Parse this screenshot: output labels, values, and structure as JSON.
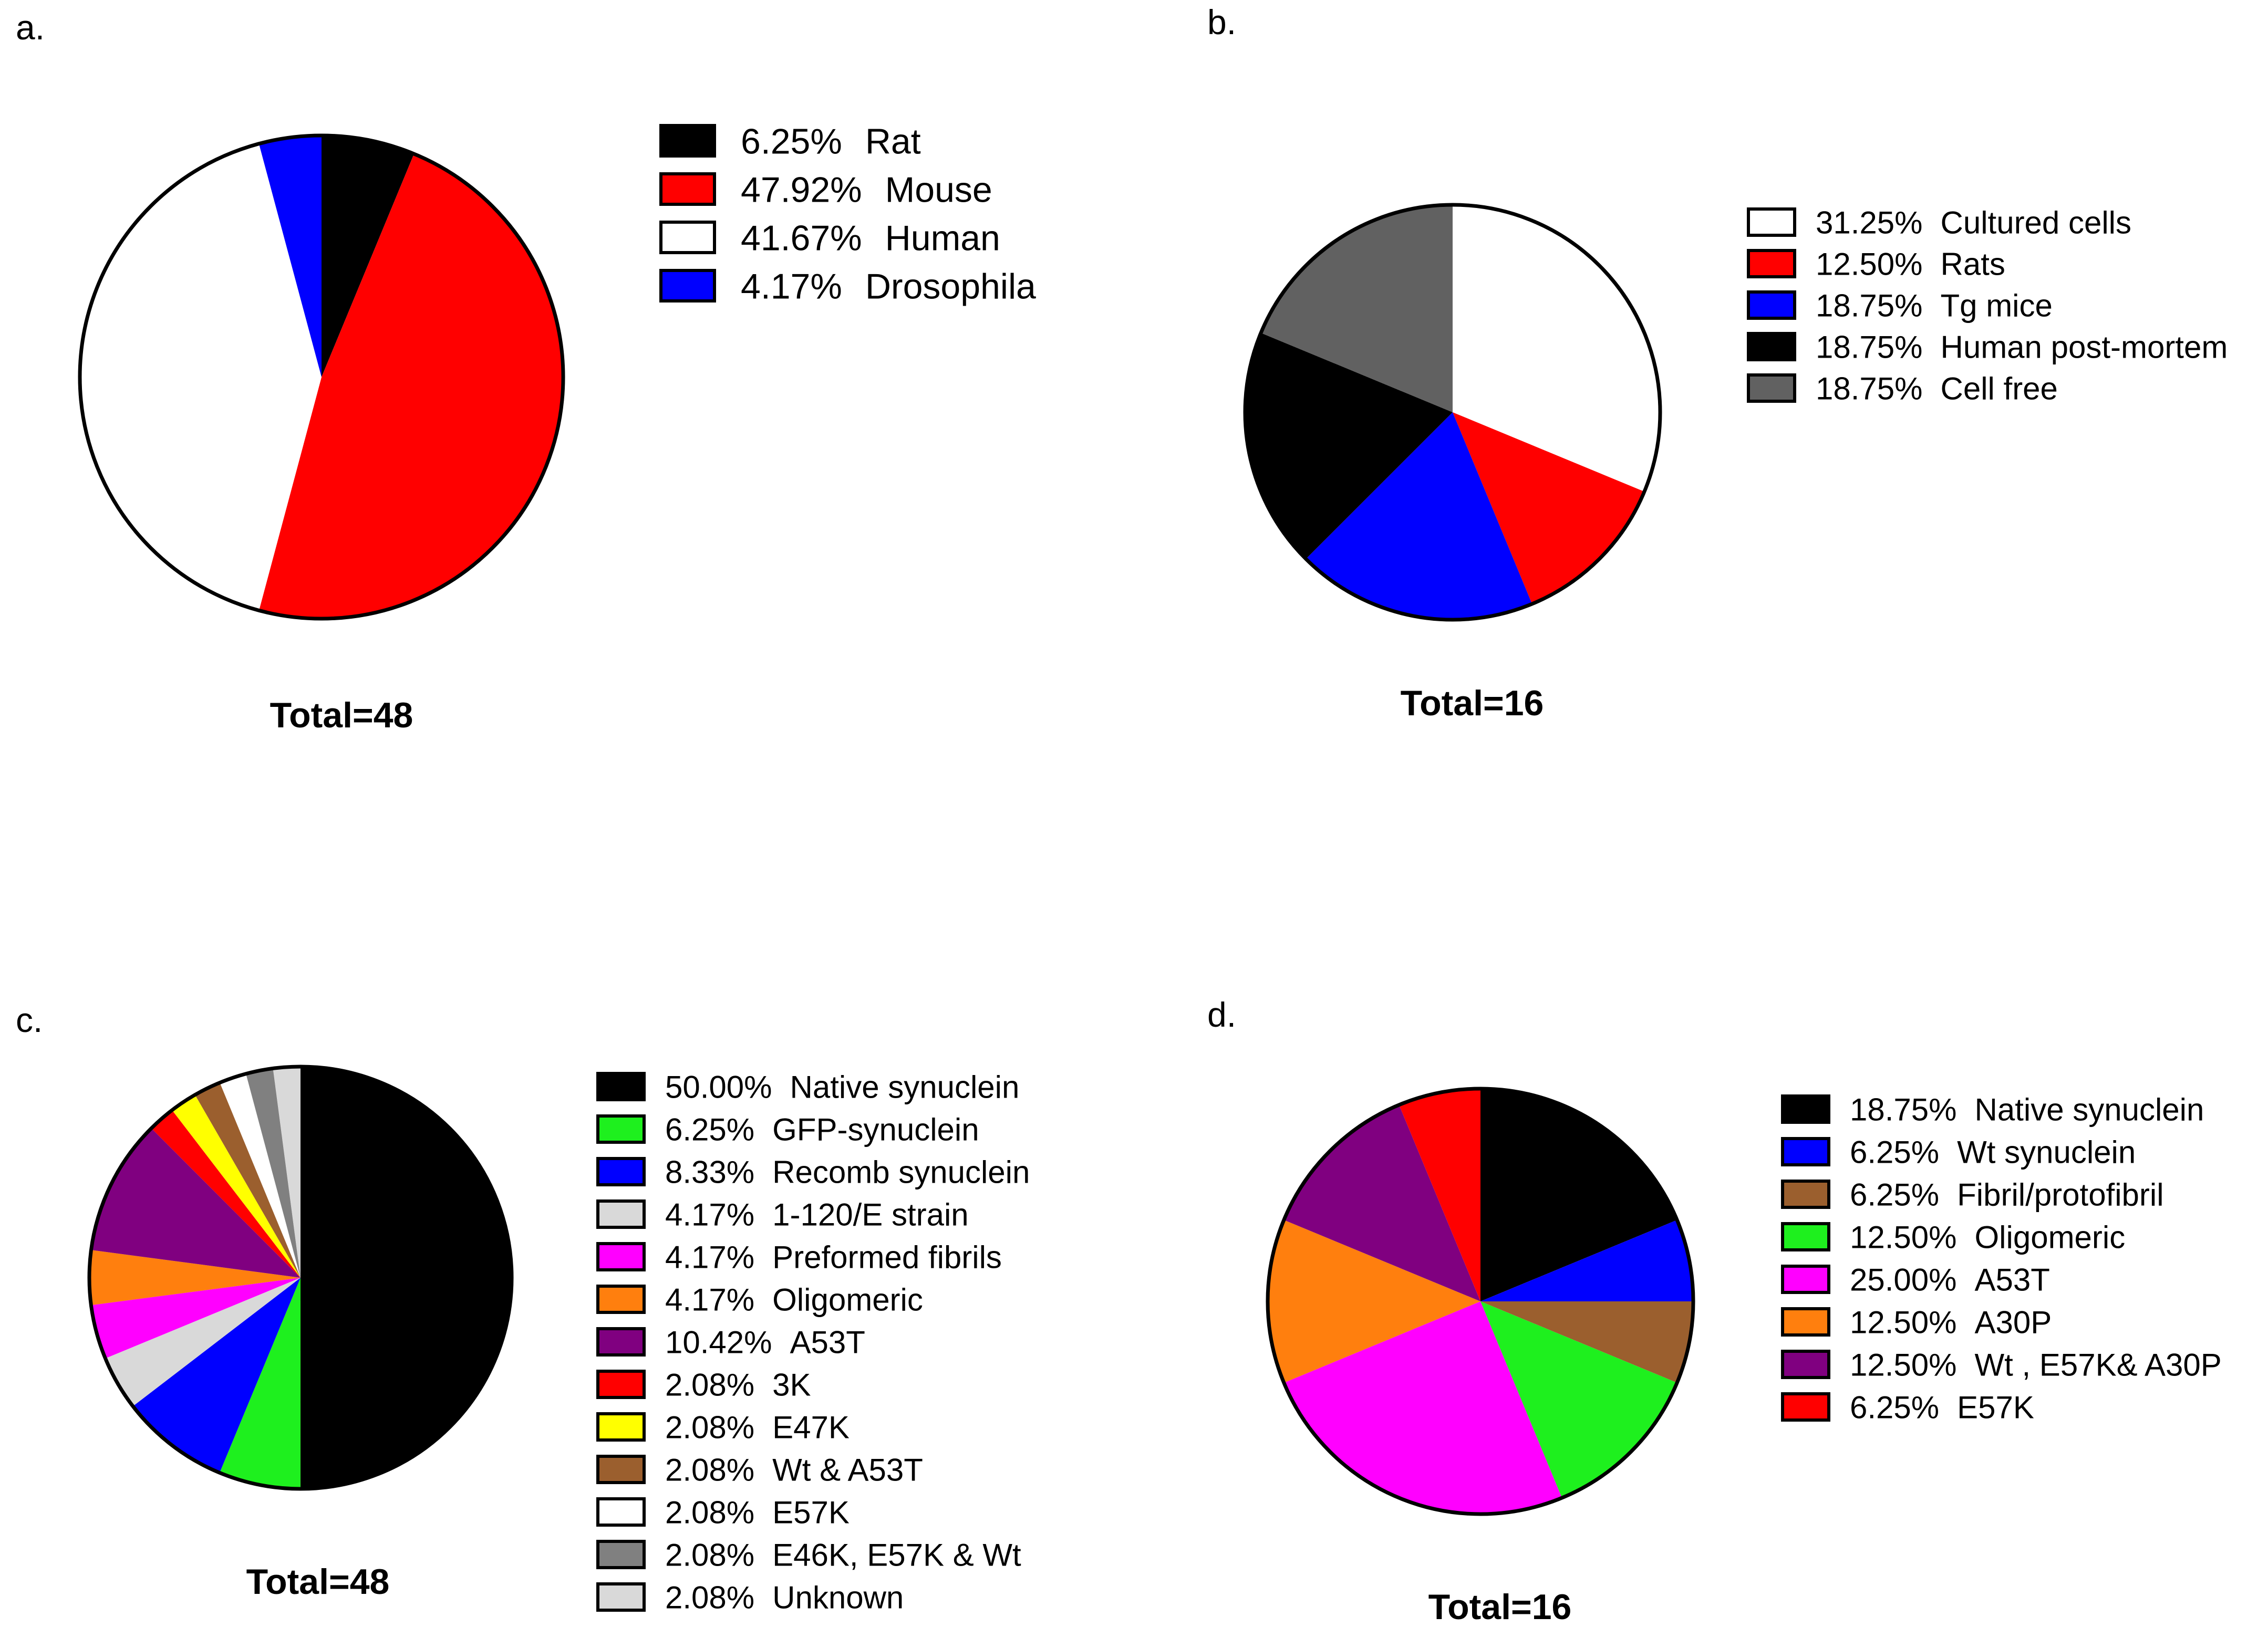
{
  "chart_data": [
    {
      "panel": "a.",
      "type": "pie",
      "total_label": "Total=48",
      "slices": [
        {
          "percent_label": "6.25%",
          "name": "Rat",
          "value": 6.25,
          "color": "#000000"
        },
        {
          "percent_label": "47.92%",
          "name": "Mouse",
          "value": 47.92,
          "color": "#ff0000"
        },
        {
          "percent_label": "41.67%",
          "name": "Human",
          "value": 41.67,
          "color": "#ffffff"
        },
        {
          "percent_label": "4.17%",
          "name": "Drosophila",
          "value": 4.17,
          "color": "#0000ff"
        }
      ]
    },
    {
      "panel": "b.",
      "type": "pie",
      "total_label": "Total=16",
      "slices": [
        {
          "percent_label": "31.25%",
          "name": "Cultured cells",
          "value": 31.25,
          "color": "#ffffff"
        },
        {
          "percent_label": "12.50%",
          "name": "Rats",
          "value": 12.5,
          "color": "#ff0000"
        },
        {
          "percent_label": "18.75%",
          "name": "Tg mice",
          "value": 18.75,
          "color": "#0000ff"
        },
        {
          "percent_label": "18.75%",
          "name": "Human post-mortem",
          "value": 18.75,
          "color": "#000000"
        },
        {
          "percent_label": "18.75%",
          "name": "Cell free",
          "value": 18.75,
          "color": "#616161"
        }
      ]
    },
    {
      "panel": "c.",
      "type": "pie",
      "total_label": "Total=48",
      "slices": [
        {
          "percent_label": "50.00%",
          "name": "Native synuclein",
          "value": 50.0,
          "color": "#000000"
        },
        {
          "percent_label": "6.25%",
          "name": "GFP-synuclein",
          "value": 6.25,
          "color": "#1ef01e"
        },
        {
          "percent_label": "8.33%",
          "name": "Recomb synuclein",
          "value": 8.33,
          "color": "#0000ff"
        },
        {
          "percent_label": "4.17%",
          "name": "1-120/E strain",
          "value": 4.17,
          "color": "#d9d9d9"
        },
        {
          "percent_label": "4.17%",
          "name": "Preformed fibrils",
          "value": 4.17,
          "color": "#ff00ff"
        },
        {
          "percent_label": "4.17%",
          "name": "Oligomeric",
          "value": 4.17,
          "color": "#ff7f0e"
        },
        {
          "percent_label": "10.42%",
          "name": "A53T",
          "value": 10.42,
          "color": "#800080"
        },
        {
          "percent_label": "2.08%",
          "name": "3K",
          "value": 2.08,
          "color": "#ff0000"
        },
        {
          "percent_label": "2.08%",
          "name": "E47K",
          "value": 2.08,
          "color": "#ffff00"
        },
        {
          "percent_label": "2.08%",
          "name": "Wt & A53T",
          "value": 2.08,
          "color": "#9b5f2e"
        },
        {
          "percent_label": "2.08%",
          "name": "E57K",
          "value": 2.08,
          "color": "#ffffff"
        },
        {
          "percent_label": "2.08%",
          "name": "E46K, E57K & Wt",
          "value": 2.08,
          "color": "#808080"
        },
        {
          "percent_label": "2.08%",
          "name": "Unknown",
          "value": 2.08,
          "color": "#d9d9d9"
        }
      ]
    },
    {
      "panel": "d.",
      "type": "pie",
      "total_label": "Total=16",
      "slices": [
        {
          "percent_label": "18.75%",
          "name": "Native synuclein",
          "value": 18.75,
          "color": "#000000"
        },
        {
          "percent_label": "6.25%",
          "name": "Wt synuclein",
          "value": 6.25,
          "color": "#0000ff"
        },
        {
          "percent_label": "6.25%",
          "name": "Fibril/protofibril",
          "value": 6.25,
          "color": "#9b5f2e"
        },
        {
          "percent_label": "12.50%",
          "name": "Oligomeric",
          "value": 12.5,
          "color": "#1ef01e"
        },
        {
          "percent_label": "25.00%",
          "name": "A53T",
          "value": 25.0,
          "color": "#ff00ff"
        },
        {
          "percent_label": "12.50%",
          "name": "A30P",
          "value": 12.5,
          "color": "#ff7f0e"
        },
        {
          "percent_label": "12.50%",
          "name": "Wt , E57K& A30P",
          "value": 12.5,
          "color": "#800080"
        },
        {
          "percent_label": "6.25%",
          "name": "E57K",
          "value": 6.25,
          "color": "#ff0000"
        }
      ]
    }
  ]
}
